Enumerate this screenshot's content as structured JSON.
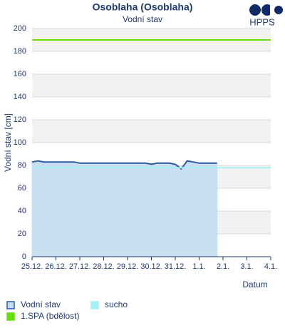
{
  "logo": {
    "text": "HPPS"
  },
  "chart_data": {
    "type": "line",
    "title": "Osoblaha (Osoblaha)",
    "subtitle": "Vodní stav",
    "ylabel": "Vodní stav [cm]",
    "xlabel": "Datum",
    "xlim": [
      0,
      10
    ],
    "xticks": [
      {
        "value": 0,
        "label": "25.12."
      },
      {
        "value": 1,
        "label": "26.12."
      },
      {
        "value": 2,
        "label": "27.12."
      },
      {
        "value": 3,
        "label": "28.12."
      },
      {
        "value": 4,
        "label": "29.12."
      },
      {
        "value": 5,
        "label": "30.12."
      },
      {
        "value": 6,
        "label": "31.12."
      },
      {
        "value": 7,
        "label": "1.1."
      },
      {
        "value": 8,
        "label": "2.1."
      },
      {
        "value": 9,
        "label": "3.1."
      },
      {
        "value": 10,
        "label": "4.1."
      }
    ],
    "ylim": [
      0,
      200
    ],
    "yticks": [
      0,
      20,
      40,
      60,
      80,
      100,
      120,
      140,
      160,
      180,
      200
    ],
    "grid": true,
    "series": [
      {
        "name": "Vodní stav",
        "color": "#2a5ca8",
        "fill": "#c5dcf2",
        "x": [
          0,
          0.25,
          0.5,
          0.75,
          1,
          1.25,
          1.5,
          1.75,
          2,
          2.25,
          2.5,
          2.75,
          3,
          3.25,
          3.5,
          3.75,
          4,
          4.25,
          4.5,
          4.75,
          5,
          5.25,
          5.5,
          5.75,
          6,
          6.25,
          6.5,
          6.75,
          7,
          7.25,
          7.5,
          7.75
        ],
        "values": [
          83,
          84,
          83,
          83,
          83,
          83,
          83,
          83,
          82,
          82,
          82,
          82,
          82,
          82,
          82,
          82,
          82,
          82,
          82,
          82,
          81,
          82,
          82,
          82,
          81,
          77,
          84,
          83,
          82,
          82,
          82,
          82
        ]
      }
    ],
    "thresholds": [
      {
        "name": "sucho",
        "color": "#a8f0f4",
        "value": 78
      },
      {
        "name": "1.SPA (bdělost)",
        "color": "#66dd11",
        "value": 190
      }
    ]
  }
}
